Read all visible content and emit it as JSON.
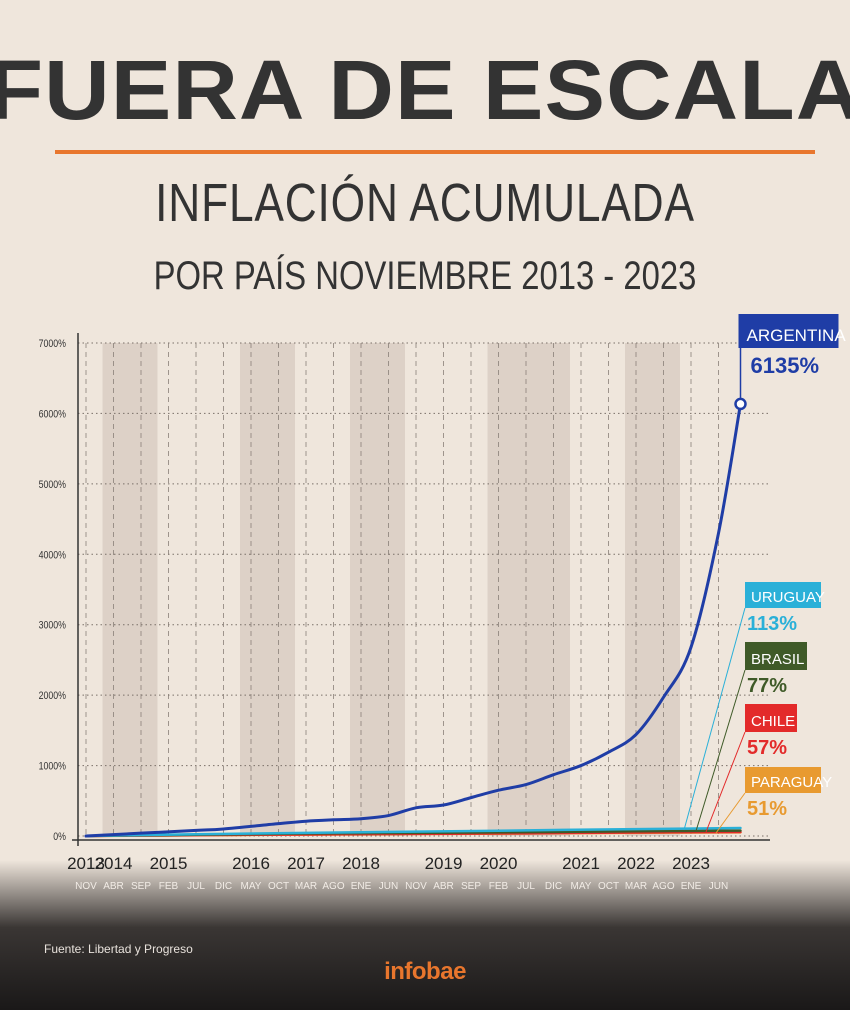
{
  "header": {
    "title": "FUERA DE ESCALA",
    "subtitle_line1": "INFLACIÓN ACUMULADA",
    "subtitle_line2": "POR PAÍS NOVIEMBRE 2013 - 2023"
  },
  "footer": {
    "source": "Fuente: Libertad y Progreso",
    "brand": "infobae"
  },
  "colors": {
    "accent": "#e8762d",
    "background": "#efe6dc",
    "argentina": "#1f3da6",
    "uruguay": "#2ab0d8",
    "brasil": "#3f5a28",
    "chile": "#e32a2a",
    "paraguay": "#e89a30"
  },
  "chart_data": {
    "type": "line",
    "title": "INFLACIÓN ACUMULADA POR PAÍS NOVIEMBRE 2013 - 2023",
    "ylim": [
      0,
      7000
    ],
    "y_ticks": [
      "0%",
      "1000%",
      "2000%",
      "3000%",
      "4000%",
      "5000%",
      "6000%",
      "7000%"
    ],
    "x_ticks": [
      {
        "year": "2013",
        "month": "NOV"
      },
      {
        "year": "2014",
        "month": "ABR"
      },
      {
        "year": "",
        "month": "SEP"
      },
      {
        "year": "2015",
        "month": "FEB"
      },
      {
        "year": "",
        "month": "JUL"
      },
      {
        "year": "",
        "month": "DIC"
      },
      {
        "year": "2016",
        "month": "MAY"
      },
      {
        "year": "",
        "month": "OCT"
      },
      {
        "year": "2017",
        "month": "MAR"
      },
      {
        "year": "",
        "month": "AGO"
      },
      {
        "year": "2018",
        "month": "ENE"
      },
      {
        "year": "",
        "month": "JUN"
      },
      {
        "year": "",
        "month": "NOV"
      },
      {
        "year": "2019",
        "month": "ABR"
      },
      {
        "year": "",
        "month": "SEP"
      },
      {
        "year": "2020",
        "month": "FEB"
      },
      {
        "year": "",
        "month": "JUL"
      },
      {
        "year": "",
        "month": "DIC"
      },
      {
        "year": "2021",
        "month": "MAY"
      },
      {
        "year": "",
        "month": "OCT"
      },
      {
        "year": "2022",
        "month": "MAR"
      },
      {
        "year": "",
        "month": "AGO"
      },
      {
        "year": "2023",
        "month": "ENE"
      },
      {
        "year": "",
        "month": "JUN"
      }
    ],
    "series": [
      {
        "name": "ARGENTINA",
        "final_label": "6135%",
        "x": [
          0,
          2,
          4,
          5,
          7,
          8,
          9,
          10,
          11,
          12,
          13,
          14,
          15,
          16,
          17,
          18,
          19,
          20,
          21,
          22,
          23,
          23.8
        ],
        "y": [
          0,
          40,
          80,
          100,
          175,
          210,
          230,
          245,
          290,
          400,
          440,
          545,
          650,
          730,
          870,
          1000,
          1190,
          1440,
          1970,
          2680,
          4300,
          6135
        ]
      },
      {
        "name": "URUGUAY",
        "final_label": "113%",
        "x": [
          0,
          4,
          8,
          12,
          16,
          20,
          23.8
        ],
        "y": [
          0,
          25,
          45,
          62,
          80,
          98,
          113
        ]
      },
      {
        "name": "BRASIL",
        "final_label": "77%",
        "x": [
          0,
          4,
          8,
          12,
          16,
          20,
          23.8
        ],
        "y": [
          0,
          18,
          35,
          45,
          55,
          68,
          77
        ]
      },
      {
        "name": "CHILE",
        "final_label": "57%",
        "x": [
          0,
          4,
          8,
          12,
          16,
          20,
          23.8
        ],
        "y": [
          0,
          12,
          22,
          30,
          38,
          50,
          57
        ]
      },
      {
        "name": "PARAGUAY",
        "final_label": "51%",
        "x": [
          0,
          4,
          8,
          12,
          16,
          20,
          23.8
        ],
        "y": [
          0,
          10,
          20,
          28,
          35,
          45,
          51
        ]
      }
    ]
  }
}
